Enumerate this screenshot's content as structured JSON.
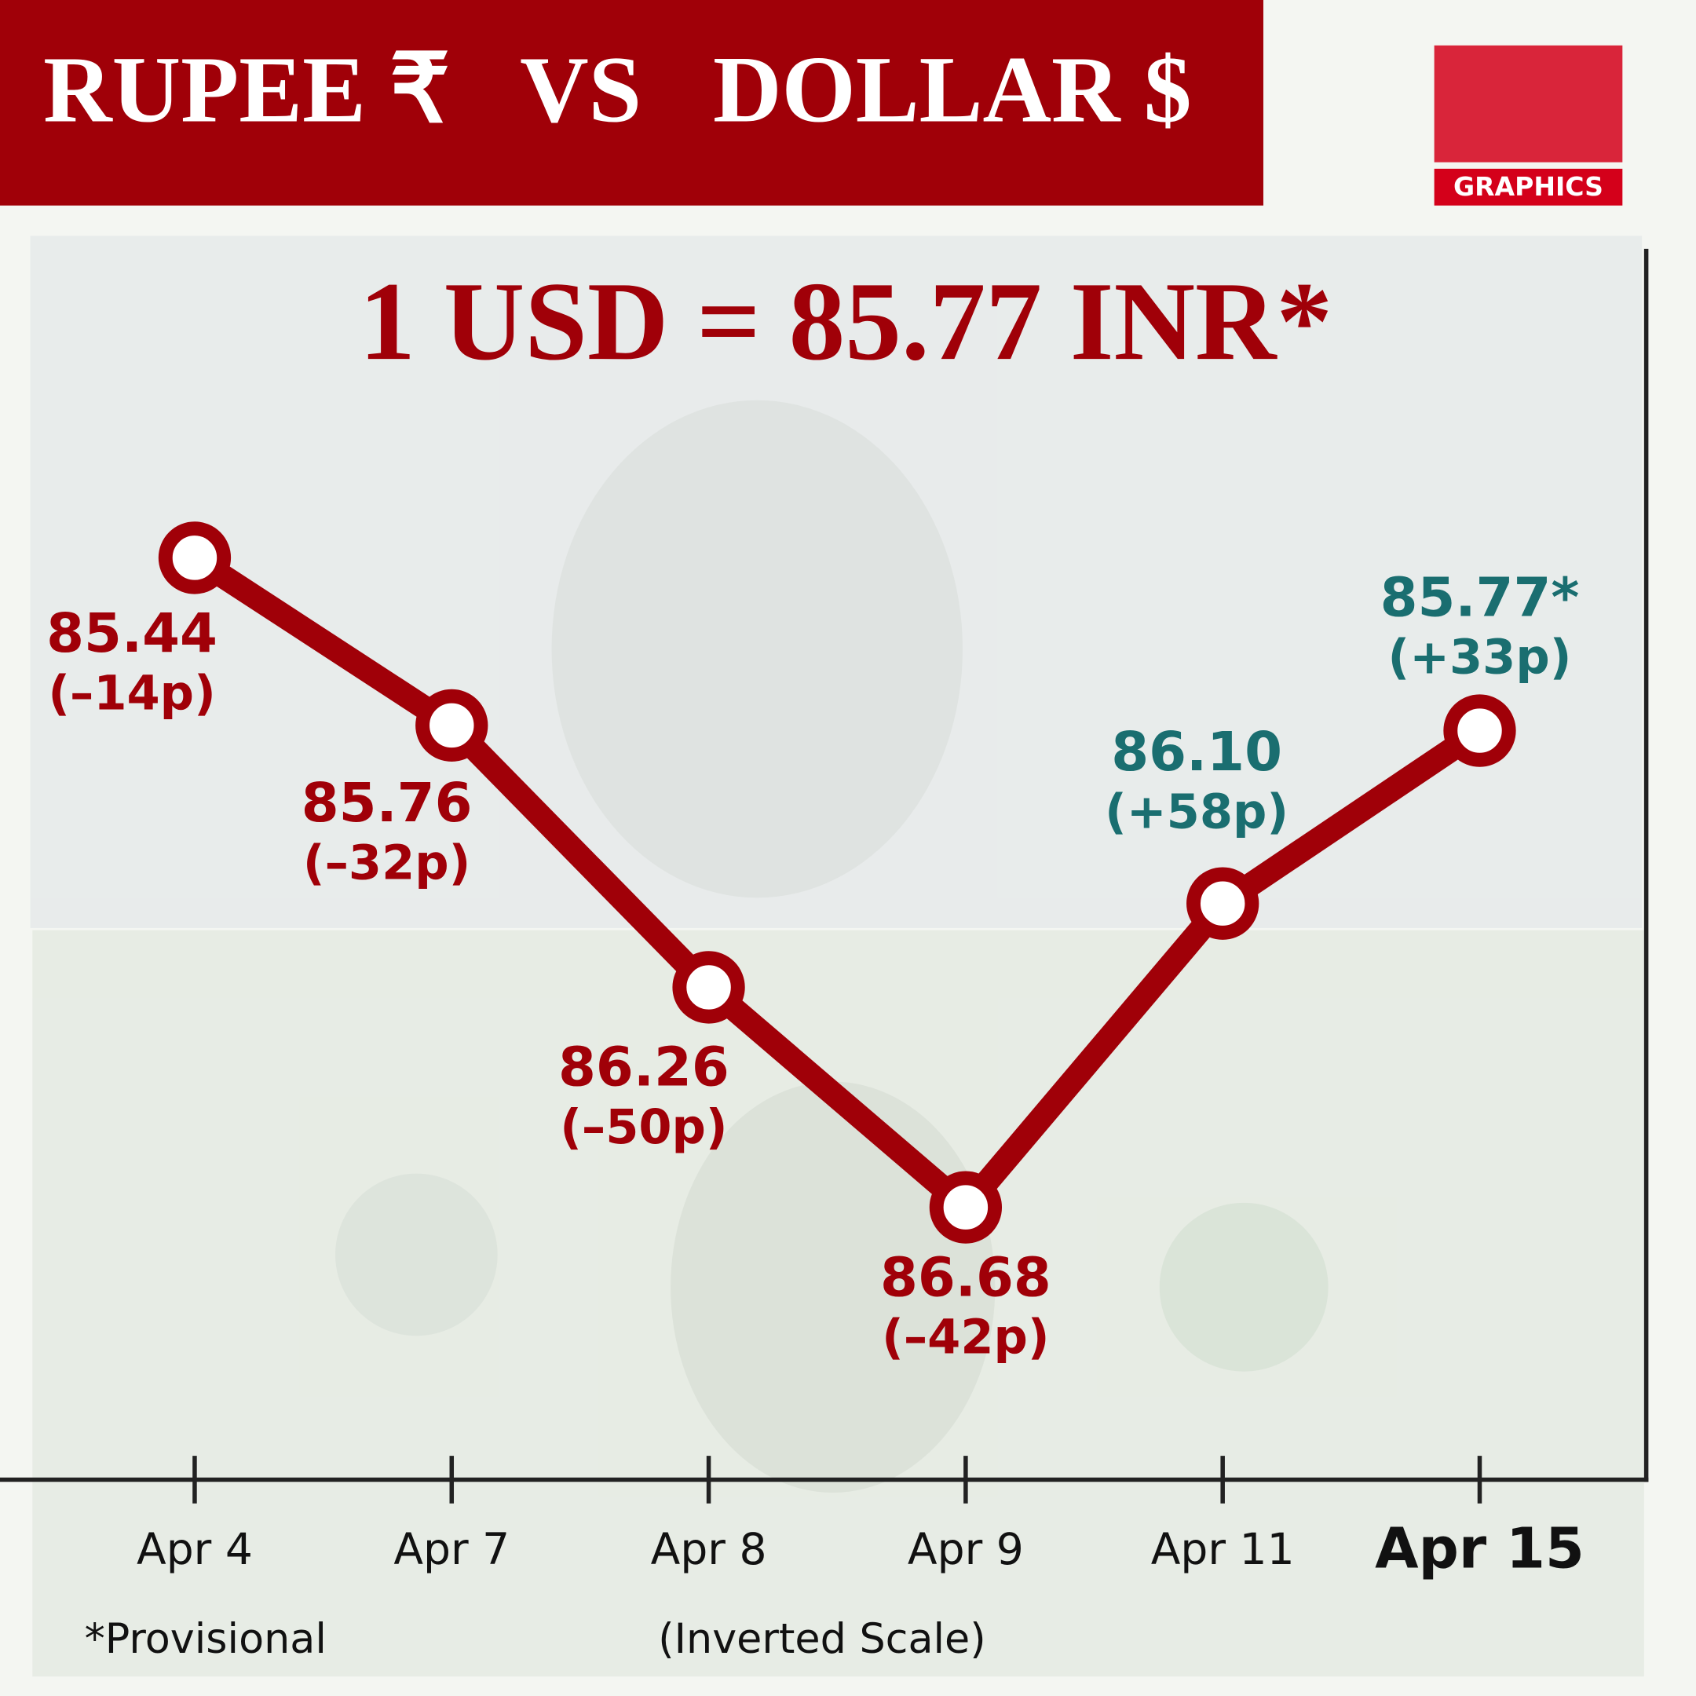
{
  "chart_data": {
    "type": "line",
    "title": "RUPEE ₹   VS   DOLLAR $",
    "subtitle": "1 USD = 85.77 INR*",
    "logo_label": "GRAPHICS",
    "categories": [
      "Apr 4",
      "Apr 7",
      "Apr 8",
      "Apr 9",
      "Apr 11",
      "Apr 15"
    ],
    "values": [
      85.44,
      85.76,
      86.26,
      86.68,
      86.1,
      85.77
    ],
    "value_labels": [
      "85.44",
      "85.76",
      "86.26",
      "86.68",
      "86.10",
      "85.77*"
    ],
    "change_labels": [
      "(–14p)",
      "(–32p)",
      "(–50p)",
      "(–42p)",
      "(+58p)",
      "(+33p)"
    ],
    "label_colors": [
      "#a00008",
      "#a00008",
      "#a00008",
      "#a00008",
      "#1a6e70",
      "#1a6e70"
    ],
    "color": "#a00008",
    "ylim": [
      84.85,
      87.2
    ],
    "y_inverted": true,
    "scale_note": "(Inverted Scale)",
    "footnote": "*Provisional"
  }
}
